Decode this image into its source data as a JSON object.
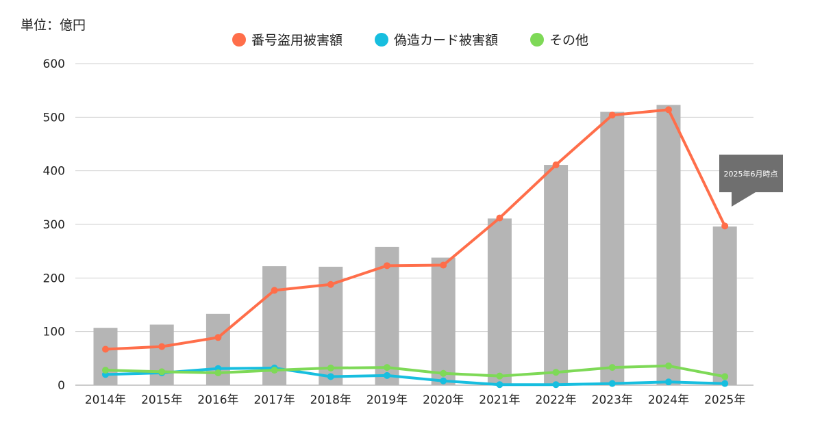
{
  "unit_label": "単位：億円",
  "annotation": "2025年6月時点",
  "chart_data": {
    "type": "bar+line",
    "categories": [
      "2014年",
      "2015年",
      "2016年",
      "2017年",
      "2018年",
      "2019年",
      "2020年",
      "2021年",
      "2022年",
      "2023年",
      "2024年",
      "2025年"
    ],
    "bar_values": [
      107,
      113,
      133,
      222,
      221,
      258,
      238,
      311,
      411,
      510,
      523,
      296
    ],
    "bar_color": "#b5b5b5",
    "series": [
      {
        "name": "番号盗用被害額",
        "color": "#ff6e4a",
        "values": [
          67,
          72,
          89,
          177,
          188,
          223,
          224,
          312,
          411,
          504,
          514,
          297
        ]
      },
      {
        "name": "偽造カード被害額",
        "color": "#17bedf",
        "values": [
          20,
          23,
          31,
          32,
          16,
          18,
          8,
          1,
          1,
          3,
          6,
          3
        ]
      },
      {
        "name": "その他",
        "color": "#7ed957",
        "values": [
          28,
          25,
          23,
          28,
          32,
          33,
          22,
          17,
          24,
          33,
          36,
          16
        ]
      }
    ],
    "ylim": [
      0,
      600
    ],
    "yticks": [
      0,
      100,
      200,
      300,
      400,
      500,
      600
    ],
    "grid": true,
    "legend_position": "top-center"
  }
}
